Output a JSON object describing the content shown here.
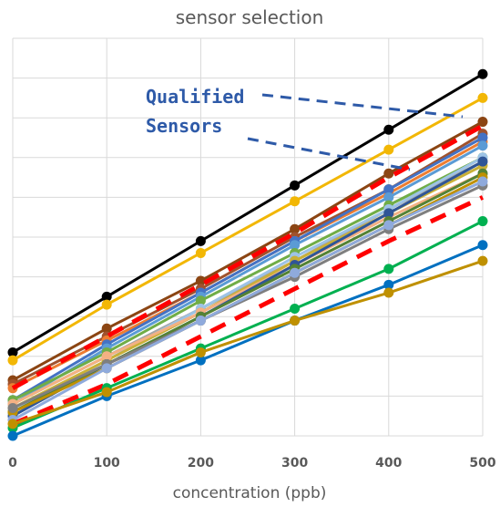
{
  "chart_data": {
    "type": "line",
    "title": "sensor selection",
    "xlabel": "concentration (ppb)",
    "ylabel": "",
    "x": [
      0,
      100,
      200,
      300,
      400,
      500
    ],
    "xlim": [
      0,
      500
    ],
    "ylim": [
      0,
      10
    ],
    "grid": true,
    "legend": "none",
    "annotation": {
      "line1": "Qualified",
      "line2": "Sensors"
    },
    "series": [
      {
        "color": "#000000",
        "style": "solid",
        "values": [
          2.1,
          3.5,
          4.9,
          6.3,
          7.7,
          9.1
        ]
      },
      {
        "color": "#f2b705",
        "style": "solid",
        "values": [
          1.9,
          3.3,
          4.6,
          5.9,
          7.2,
          8.5
        ]
      },
      {
        "color": "#8b4513",
        "style": "solid",
        "values": [
          1.4,
          2.7,
          3.9,
          5.2,
          6.6,
          7.9
        ]
      },
      {
        "color": "#a0522d",
        "style": "solid",
        "values": [
          1.3,
          2.5,
          3.7,
          5.0,
          6.2,
          7.6
        ]
      },
      {
        "color": "#ed7d31",
        "style": "solid",
        "values": [
          1.2,
          2.4,
          3.6,
          4.9,
          6.1,
          7.4
        ]
      },
      {
        "color": "#4472c4",
        "style": "solid",
        "values": [
          0.9,
          2.3,
          3.6,
          4.9,
          6.2,
          7.5
        ]
      },
      {
        "color": "#5b9bd5",
        "style": "solid",
        "values": [
          0.8,
          2.2,
          3.5,
          4.8,
          6.0,
          7.3
        ]
      },
      {
        "color": "#70ad47",
        "style": "solid",
        "values": [
          0.9,
          2.1,
          3.4,
          4.6,
          5.8,
          7.0
        ]
      },
      {
        "color": "#a5a5a5",
        "style": "solid",
        "values": [
          0.8,
          2.0,
          3.2,
          4.4,
          5.7,
          6.9
        ]
      },
      {
        "color": "#9dc3e6",
        "style": "solid",
        "values": [
          0.6,
          1.9,
          3.2,
          4.5,
          5.7,
          7.0
        ]
      },
      {
        "color": "#c9b037",
        "style": "solid",
        "values": [
          0.7,
          1.9,
          3.1,
          4.4,
          5.6,
          6.8
        ]
      },
      {
        "color": "#f4b183",
        "style": "solid",
        "values": [
          0.8,
          2.0,
          3.1,
          4.3,
          5.5,
          6.6
        ]
      },
      {
        "color": "#2f5597",
        "style": "solid",
        "values": [
          0.5,
          1.8,
          3.0,
          4.3,
          5.6,
          6.9
        ]
      },
      {
        "color": "#548235",
        "style": "solid",
        "values": [
          0.6,
          1.8,
          3.0,
          4.2,
          5.4,
          6.6
        ]
      },
      {
        "color": "#bf9000",
        "style": "solid",
        "values": [
          0.6,
          1.7,
          2.9,
          4.1,
          5.3,
          6.5
        ]
      },
      {
        "color": "#7f7f7f",
        "style": "solid",
        "values": [
          0.7,
          1.8,
          2.9,
          4.0,
          5.2,
          6.3
        ]
      },
      {
        "color": "#8faadc",
        "style": "solid",
        "values": [
          0.4,
          1.7,
          2.9,
          4.1,
          5.3,
          6.4
        ]
      },
      {
        "color": "#ff0000",
        "style": "dashed",
        "values": [
          1.2,
          2.5,
          3.8,
          5.1,
          6.5,
          7.8
        ]
      },
      {
        "color": "#ff0000",
        "style": "dashed",
        "values": [
          0.3,
          1.3,
          2.5,
          3.7,
          4.9,
          6.0
        ]
      },
      {
        "color": "#00b050",
        "style": "solid",
        "values": [
          0.2,
          1.2,
          2.2,
          3.2,
          4.2,
          5.4
        ]
      },
      {
        "color": "#0070c0",
        "style": "solid",
        "values": [
          0.0,
          1.0,
          1.9,
          2.9,
          3.8,
          4.8
        ]
      },
      {
        "color": "#bf9000",
        "style": "solid",
        "values": [
          0.3,
          1.1,
          2.1,
          2.9,
          3.6,
          4.4
        ]
      }
    ]
  }
}
